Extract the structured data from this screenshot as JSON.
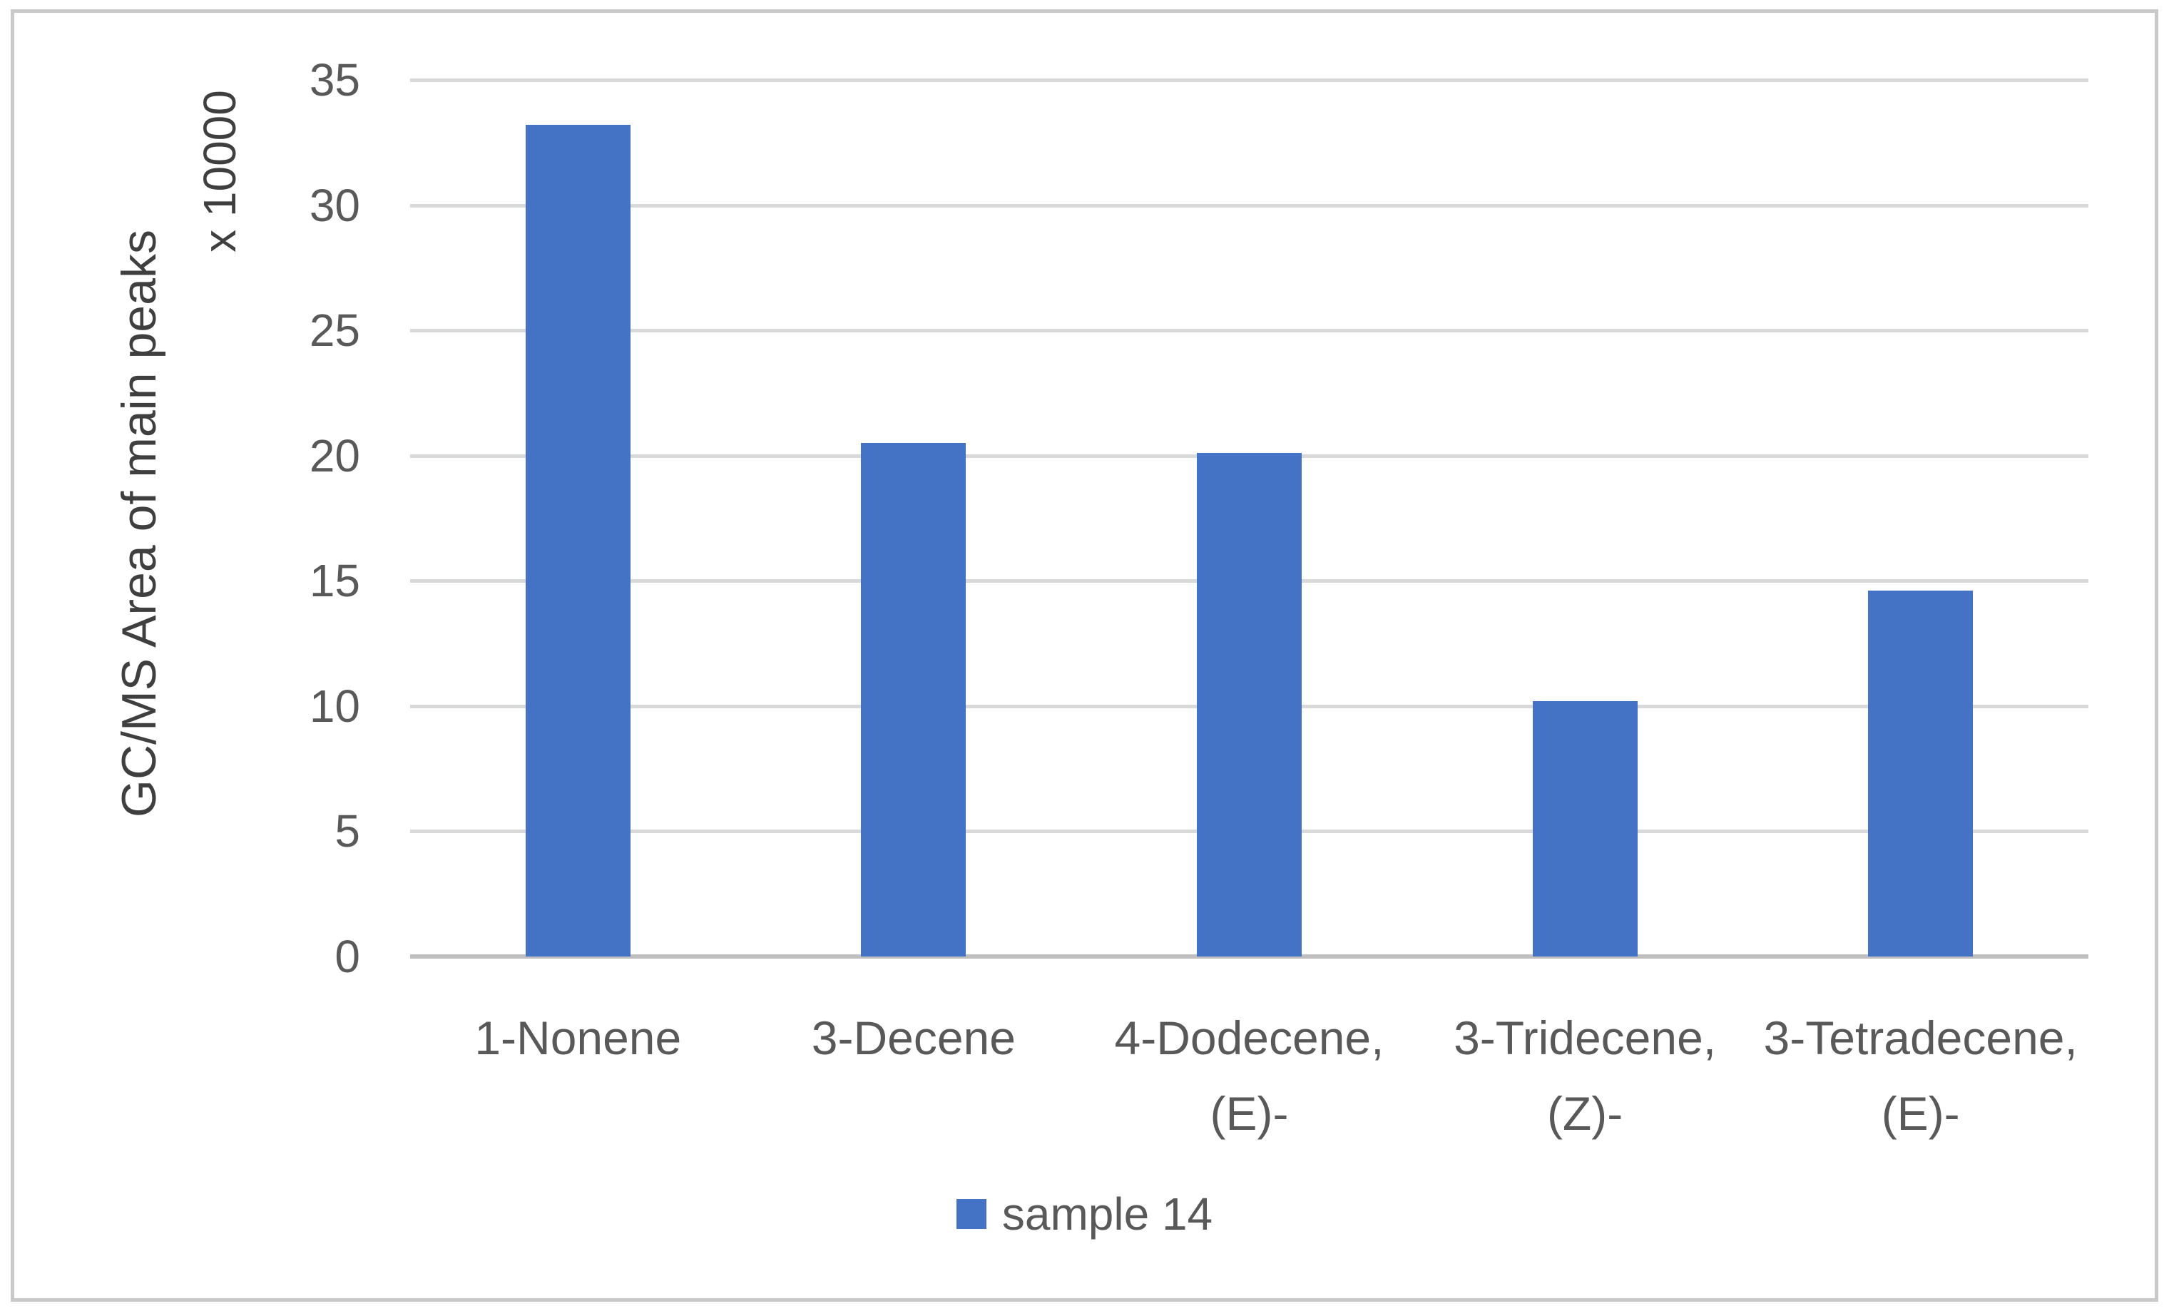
{
  "chart_data": {
    "type": "bar",
    "title": "",
    "categories": [
      "1-Nonene",
      "3-Decene",
      "4-Dodecene, (E)-",
      "3-Tridecene, (Z)-",
      "3-Tetradecene, (E)-"
    ],
    "category_lines": [
      [
        "1-Nonene"
      ],
      [
        "3-Decene"
      ],
      [
        "4-Dodecene,",
        "(E)-"
      ],
      [
        "3-Tridecene,",
        "(Z)-"
      ],
      [
        "3-Tetradecene,",
        "(E)-"
      ]
    ],
    "series": [
      {
        "name": "sample 14",
        "values": [
          33.2,
          20.5,
          20.1,
          10.2,
          14.6
        ]
      }
    ],
    "xlabel": "",
    "ylabel": "GC/MS Area of main peaks",
    "y_multiplier_label": "x 10000",
    "yticks": [
      0,
      5,
      10,
      15,
      20,
      25,
      30,
      35
    ],
    "ylim": [
      0,
      35
    ],
    "grid": true,
    "legend": {
      "position": "bottom",
      "entries": [
        "sample 14"
      ]
    },
    "colors": {
      "bar": "#4472C4",
      "gridline": "#D9D9D9",
      "axis_line": "#BFBFBF",
      "tick_text": "#595959",
      "axis_title_text": "#3F3F3F",
      "frame_border": "#C9C9C9",
      "background": "#FFFFFF"
    }
  }
}
